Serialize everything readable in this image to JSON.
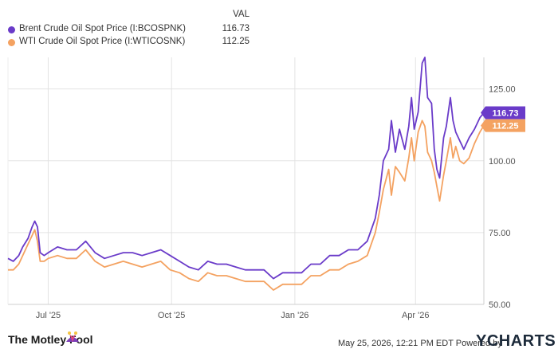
{
  "legend": {
    "header": "VAL",
    "items": [
      {
        "name": "Brent Crude Oil Spot Price (I:BCOSPNK)",
        "value": "116.73",
        "color": "#6a3bc9"
      },
      {
        "name": "WTI Crude Oil Spot Price (I:WTICOSNK)",
        "value": "112.25",
        "color": "#f4a261"
      }
    ]
  },
  "footer": {
    "brand": "The Motley Fool",
    "timestamp": "May 25, 2026, 12:21 PM EDT Powered by",
    "provider": "YCHARTS"
  },
  "chart_data": {
    "type": "line",
    "x_labels": [
      "Jul '25",
      "Oct '25",
      "Jan '26",
      "Apr '26"
    ],
    "y_ticks": [
      50.0,
      75.0,
      100.0,
      125.0
    ],
    "ylim": [
      50,
      136
    ],
    "grid": true,
    "series": [
      {
        "name": "Brent Crude Oil Spot Price (I:BCOSPNK)",
        "color": "#6a3bc9",
        "end_label": "116.73",
        "points": [
          [
            "2025-06-01",
            66
          ],
          [
            "2025-06-05",
            65
          ],
          [
            "2025-06-09",
            67
          ],
          [
            "2025-06-12",
            70
          ],
          [
            "2025-06-16",
            73
          ],
          [
            "2025-06-19",
            77
          ],
          [
            "2025-06-21",
            79
          ],
          [
            "2025-06-23",
            77
          ],
          [
            "2025-06-25",
            68
          ],
          [
            "2025-06-28",
            67
          ],
          [
            "2025-07-01",
            68
          ],
          [
            "2025-07-08",
            70
          ],
          [
            "2025-07-15",
            69
          ],
          [
            "2025-07-22",
            69
          ],
          [
            "2025-07-29",
            72
          ],
          [
            "2025-08-05",
            68
          ],
          [
            "2025-08-12",
            66
          ],
          [
            "2025-08-19",
            67
          ],
          [
            "2025-08-26",
            68
          ],
          [
            "2025-09-02",
            68
          ],
          [
            "2025-09-09",
            67
          ],
          [
            "2025-09-16",
            68
          ],
          [
            "2025-09-23",
            69
          ],
          [
            "2025-09-30",
            67
          ],
          [
            "2025-10-07",
            65
          ],
          [
            "2025-10-14",
            63
          ],
          [
            "2025-10-21",
            62
          ],
          [
            "2025-10-28",
            65
          ],
          [
            "2025-11-04",
            64
          ],
          [
            "2025-11-11",
            64
          ],
          [
            "2025-11-18",
            63
          ],
          [
            "2025-11-25",
            62
          ],
          [
            "2025-12-02",
            62
          ],
          [
            "2025-12-09",
            62
          ],
          [
            "2025-12-16",
            59
          ],
          [
            "2025-12-23",
            61
          ],
          [
            "2025-12-30",
            61
          ],
          [
            "2026-01-06",
            61
          ],
          [
            "2026-01-13",
            64
          ],
          [
            "2026-01-20",
            64
          ],
          [
            "2026-01-27",
            67
          ],
          [
            "2026-02-03",
            67
          ],
          [
            "2026-02-10",
            69
          ],
          [
            "2026-02-17",
            69
          ],
          [
            "2026-02-24",
            72
          ],
          [
            "2026-03-02",
            80
          ],
          [
            "2026-03-05",
            88
          ],
          [
            "2026-03-08",
            100
          ],
          [
            "2026-03-12",
            104
          ],
          [
            "2026-03-14",
            114
          ],
          [
            "2026-03-17",
            103
          ],
          [
            "2026-03-20",
            111
          ],
          [
            "2026-03-24",
            104
          ],
          [
            "2026-03-27",
            112
          ],
          [
            "2026-03-29",
            122
          ],
          [
            "2026-03-31",
            111
          ],
          [
            "2026-04-03",
            117
          ],
          [
            "2026-04-06",
            134
          ],
          [
            "2026-04-08",
            136
          ],
          [
            "2026-04-10",
            122
          ],
          [
            "2026-04-13",
            120
          ],
          [
            "2026-04-15",
            104
          ],
          [
            "2026-04-17",
            97
          ],
          [
            "2026-04-19",
            94
          ],
          [
            "2026-04-22",
            108
          ],
          [
            "2026-04-24",
            112
          ],
          [
            "2026-04-27",
            122
          ],
          [
            "2026-04-29",
            114
          ],
          [
            "2026-05-01",
            110
          ],
          [
            "2026-05-04",
            107
          ],
          [
            "2026-05-07",
            104
          ],
          [
            "2026-05-11",
            108
          ],
          [
            "2026-05-15",
            111
          ],
          [
            "2026-05-19",
            115
          ],
          [
            "2026-05-22",
            116.73
          ]
        ]
      },
      {
        "name": "WTI Crude Oil Spot Price (I:WTICOSNK)",
        "color": "#f4a261",
        "end_label": "112.25",
        "points": [
          [
            "2025-06-01",
            62
          ],
          [
            "2025-06-05",
            62
          ],
          [
            "2025-06-09",
            64
          ],
          [
            "2025-06-12",
            67
          ],
          [
            "2025-06-16",
            71
          ],
          [
            "2025-06-19",
            74
          ],
          [
            "2025-06-21",
            76
          ],
          [
            "2025-06-23",
            72
          ],
          [
            "2025-06-25",
            65
          ],
          [
            "2025-06-28",
            65
          ],
          [
            "2025-07-01",
            66
          ],
          [
            "2025-07-08",
            67
          ],
          [
            "2025-07-15",
            66
          ],
          [
            "2025-07-22",
            66
          ],
          [
            "2025-07-29",
            69
          ],
          [
            "2025-08-05",
            65
          ],
          [
            "2025-08-12",
            63
          ],
          [
            "2025-08-19",
            64
          ],
          [
            "2025-08-26",
            65
          ],
          [
            "2025-09-02",
            64
          ],
          [
            "2025-09-09",
            63
          ],
          [
            "2025-09-16",
            64
          ],
          [
            "2025-09-23",
            65
          ],
          [
            "2025-09-30",
            62
          ],
          [
            "2025-10-07",
            61
          ],
          [
            "2025-10-14",
            59
          ],
          [
            "2025-10-21",
            58
          ],
          [
            "2025-10-28",
            61
          ],
          [
            "2025-11-04",
            60
          ],
          [
            "2025-11-11",
            60
          ],
          [
            "2025-11-18",
            59
          ],
          [
            "2025-11-25",
            58
          ],
          [
            "2025-12-02",
            58
          ],
          [
            "2025-12-09",
            58
          ],
          [
            "2025-12-16",
            55
          ],
          [
            "2025-12-23",
            57
          ],
          [
            "2025-12-30",
            57
          ],
          [
            "2026-01-06",
            57
          ],
          [
            "2026-01-13",
            60
          ],
          [
            "2026-01-20",
            60
          ],
          [
            "2026-01-27",
            62
          ],
          [
            "2026-02-03",
            62
          ],
          [
            "2026-02-10",
            64
          ],
          [
            "2026-02-17",
            65
          ],
          [
            "2026-02-24",
            67
          ],
          [
            "2026-03-02",
            75
          ],
          [
            "2026-03-05",
            82
          ],
          [
            "2026-03-08",
            90
          ],
          [
            "2026-03-12",
            97
          ],
          [
            "2026-03-14",
            88
          ],
          [
            "2026-03-17",
            98
          ],
          [
            "2026-03-20",
            96
          ],
          [
            "2026-03-24",
            93
          ],
          [
            "2026-03-27",
            101
          ],
          [
            "2026-03-29",
            108
          ],
          [
            "2026-03-31",
            100
          ],
          [
            "2026-04-03",
            110
          ],
          [
            "2026-04-06",
            114
          ],
          [
            "2026-04-08",
            112
          ],
          [
            "2026-04-10",
            103
          ],
          [
            "2026-04-13",
            100
          ],
          [
            "2026-04-15",
            96
          ],
          [
            "2026-04-17",
            91
          ],
          [
            "2026-04-19",
            86
          ],
          [
            "2026-04-22",
            95
          ],
          [
            "2026-04-24",
            100
          ],
          [
            "2026-04-27",
            108
          ],
          [
            "2026-04-29",
            101
          ],
          [
            "2026-05-01",
            105
          ],
          [
            "2026-05-04",
            100
          ],
          [
            "2026-05-07",
            99
          ],
          [
            "2026-05-11",
            101
          ],
          [
            "2026-05-15",
            106
          ],
          [
            "2026-05-19",
            110
          ],
          [
            "2026-05-22",
            112.25
          ]
        ]
      }
    ]
  }
}
